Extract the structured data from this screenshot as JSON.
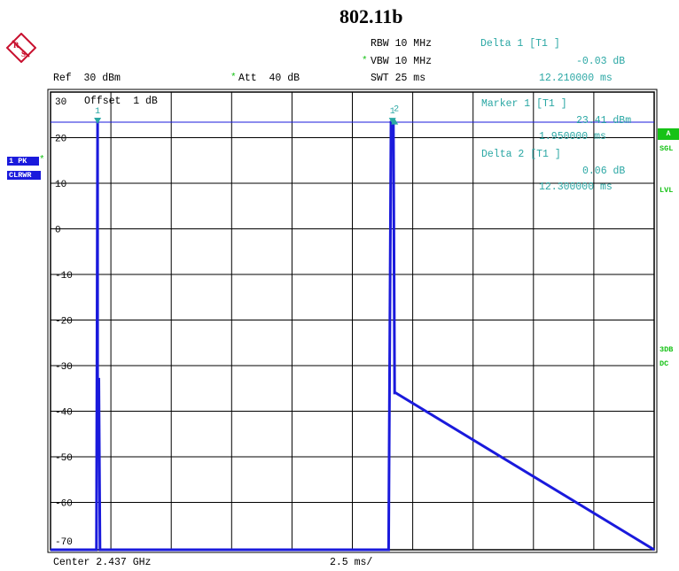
{
  "title": "802.11b",
  "header": {
    "rbw": "RBW 10 MHz",
    "vbw": "VBW 10 MHz",
    "swt": "SWT 25 ms",
    "ref": "Ref  30 dBm",
    "att": "Att  40 dB",
    "delta1_title": "Delta 1 [T1 ]",
    "delta1_value": "-0.03 dB",
    "delta1_time": "12.210000 ms",
    "vbw_star": "*",
    "att_star": "*"
  },
  "markers": {
    "marker1_title": "Marker 1 [T1 ]",
    "marker1_value": "23.41 dBm",
    "marker1_time": "1.950000 ms",
    "delta2_title": "Delta 2 [T1 ]",
    "delta2_value": "0.06 dB",
    "delta2_time": "12.300000 ms",
    "label_1": "1",
    "label_2": "2",
    "label_1b": "1"
  },
  "left_badges": {
    "trace": "1 PK",
    "trace_star": "*",
    "mode": "CLRWR"
  },
  "right_badges": {
    "a": "A",
    "sgl": "SGL",
    "lvl": "LVL",
    "3db": "3DB",
    "dc": "DC"
  },
  "offset_label": "Offset  1 dB",
  "footer": {
    "center": "Center 2.437 GHz",
    "span": "2.5 ms/"
  },
  "colors": {
    "trace": "#1a1adc",
    "ref_line": "#1a1adc",
    "marker": "#2aa7a4",
    "grid": "#000000",
    "badge_green": "#16c216",
    "logo": "#c8102e"
  },
  "chart_data": {
    "type": "line",
    "title": "802.11b",
    "xlabel": "",
    "ylabel": "",
    "x_unit": "ms",
    "y_unit": "dBm",
    "xlim": [
      0,
      25
    ],
    "ylim": [
      -72,
      30
    ],
    "y_ticks": [
      30,
      20,
      10,
      0,
      -10,
      -20,
      -30,
      -40,
      -50,
      -60,
      -70
    ],
    "y_tick_labels": [
      "30",
      "20",
      "10",
      "0",
      "-10",
      "-20",
      "-30",
      "-40",
      "-50",
      "-60",
      "-70"
    ],
    "x_divisions": 10,
    "reference_line_dbm": 23.4,
    "series": [
      {
        "x": [
          0,
          1.9,
          1.95,
          1.95,
          2.0,
          2.05,
          14.0,
          14.1,
          14.2,
          14.25,
          14.3,
          25
        ],
        "y": [
          -72,
          -72,
          23.4,
          -33,
          -33,
          -72,
          -72,
          23.4,
          23.4,
          -36,
          -36,
          -72
        ]
      }
    ],
    "markers": [
      {
        "label": "1",
        "x": 1.95,
        "y": 23.41
      },
      {
        "label": "1",
        "x": 14.16,
        "y": 23.38
      },
      {
        "label": "2",
        "x": 14.25,
        "y": 23.47
      }
    ],
    "grid": true
  }
}
